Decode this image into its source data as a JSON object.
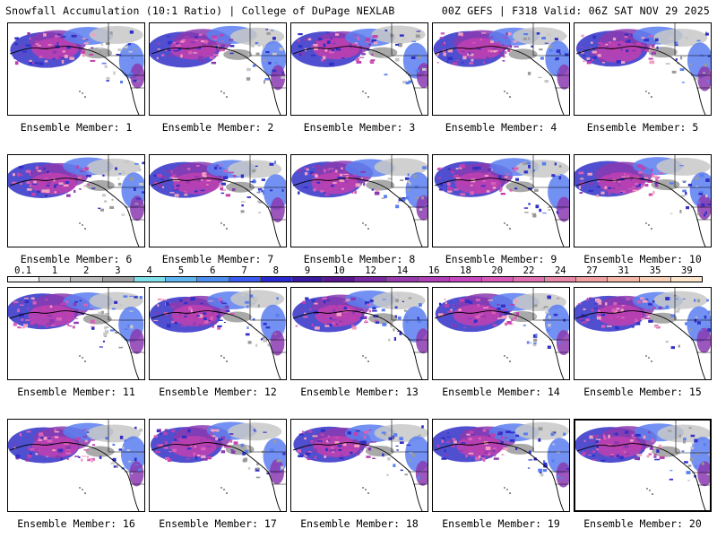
{
  "header": {
    "left": "Snowfall Accumulation (10:1 Ratio) | College of DuPage NEXLAB",
    "right": "00Z GEFS | F318 Valid: 06Z SAT NOV 29 2025"
  },
  "members": [
    {
      "label": "Ensemble Member: 1"
    },
    {
      "label": "Ensemble Member: 2"
    },
    {
      "label": "Ensemble Member: 3"
    },
    {
      "label": "Ensemble Member: 4"
    },
    {
      "label": "Ensemble Member: 5"
    },
    {
      "label": "Ensemble Member: 6"
    },
    {
      "label": "Ensemble Member: 7"
    },
    {
      "label": "Ensemble Member: 8"
    },
    {
      "label": "Ensemble Member: 9"
    },
    {
      "label": "Ensemble Member: 10"
    },
    {
      "label": "Ensemble Member: 11"
    },
    {
      "label": "Ensemble Member: 12"
    },
    {
      "label": "Ensemble Member: 13"
    },
    {
      "label": "Ensemble Member: 14"
    },
    {
      "label": "Ensemble Member: 15"
    },
    {
      "label": "Ensemble Member: 16"
    },
    {
      "label": "Ensemble Member: 17"
    },
    {
      "label": "Ensemble Member: 18"
    },
    {
      "label": "Ensemble Member: 19"
    },
    {
      "label": "Ensemble Member: 20"
    }
  ],
  "colorbar": {
    "labels": [
      "0.1",
      "1",
      "2",
      "3",
      "4",
      "5",
      "6",
      "7",
      "8",
      "9",
      "10",
      "12",
      "14",
      "16",
      "18",
      "20",
      "22",
      "24",
      "27",
      "31",
      "35",
      "39"
    ],
    "colors": [
      "#f5f5f5",
      "#d9d9d9",
      "#bdbdbd",
      "#a0a0a0",
      "#7fe0ea",
      "#5fb5f0",
      "#4d8ff0",
      "#3a5cf0",
      "#2a2ad0",
      "#3a1aa0",
      "#5a1890",
      "#7a2aa0",
      "#9a3cb0",
      "#b040b8",
      "#c84ac0",
      "#d85ab8",
      "#e070b0",
      "#e888a8",
      "#f0a0a0",
      "#f4b8a8",
      "#f8d0b8",
      "#fce6cc"
    ]
  },
  "map": {
    "land_color": "#ffffff",
    "ocean_color": "#ffffff",
    "snow_palette": [
      "#c8c8c8",
      "#9a9a9a",
      "#5a7ef0",
      "#3030c8",
      "#8a3ab0",
      "#c040b0",
      "#d860b8",
      "#f0a0c0"
    ]
  }
}
